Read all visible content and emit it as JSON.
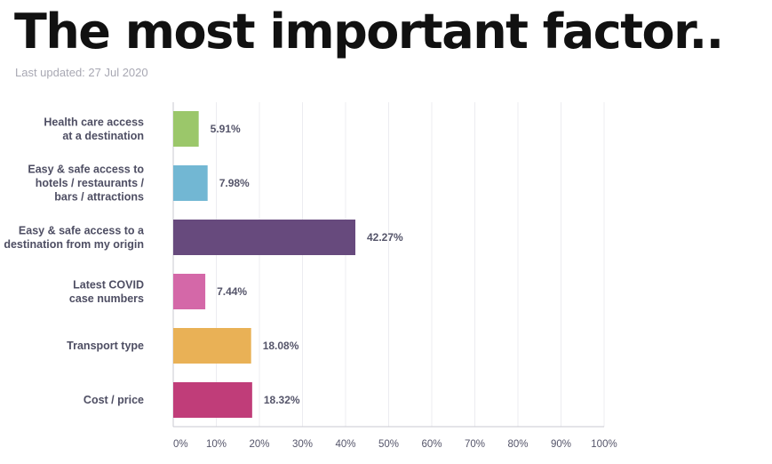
{
  "header": {
    "title": "The most important factor..",
    "updated": "Last updated: 27 Jul 2020"
  },
  "chart_data": {
    "type": "bar",
    "orientation": "horizontal",
    "categories": [
      [
        "Health care access",
        "at a destination"
      ],
      [
        "Easy & safe access to",
        "hotels / restaurants /",
        "bars / attractions"
      ],
      [
        "Easy & safe access to a",
        "destination from my origin"
      ],
      [
        "Latest COVID",
        "case numbers"
      ],
      [
        "Transport type"
      ],
      [
        "Cost / price"
      ]
    ],
    "values": [
      5.91,
      7.98,
      42.27,
      7.44,
      18.08,
      18.32
    ],
    "value_labels": [
      "5.91%",
      "7.98%",
      "42.27%",
      "7.44%",
      "18.08%",
      "18.32%"
    ],
    "colors": [
      "#9bc76a",
      "#72b7d3",
      "#674a7d",
      "#d468a8",
      "#e9b156",
      "#c03d79"
    ],
    "xlim": [
      0,
      100
    ],
    "ticks": [
      "0%",
      "10%",
      "20%",
      "30%",
      "40%",
      "50%",
      "60%",
      "70%",
      "80%",
      "90%",
      "100%"
    ],
    "grid": true
  }
}
